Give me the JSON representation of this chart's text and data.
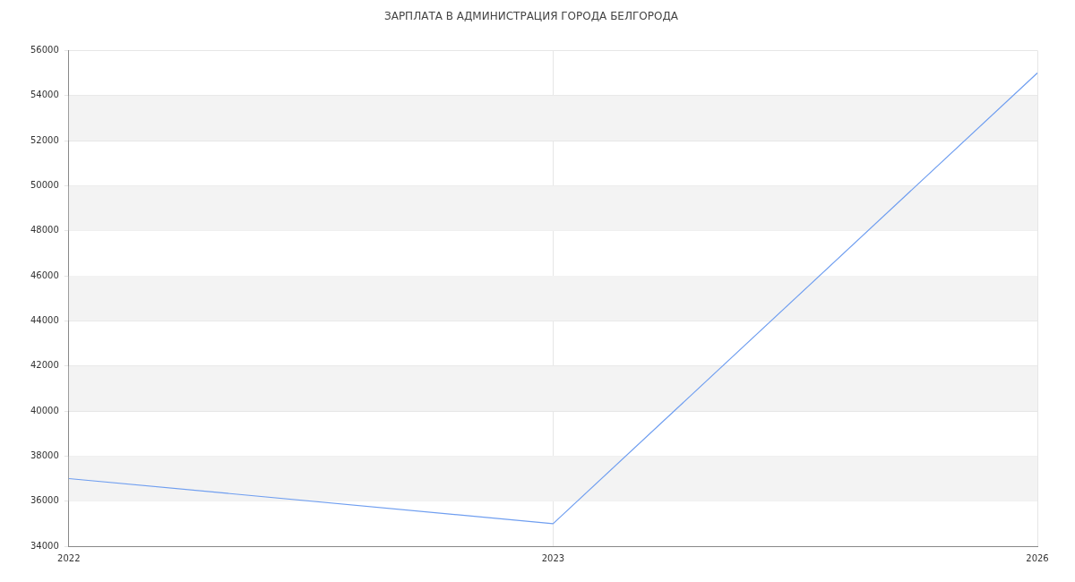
{
  "chart_data": {
    "type": "line",
    "title": "ЗАРПЛАТА В АДМИНИСТРАЦИЯ ГОРОДА БЕЛГОРОДА",
    "categories": [
      "2022",
      "2023",
      "2026"
    ],
    "series": [
      {
        "color": "#6f9ef0",
        "values": [
          37000,
          35000,
          55000
        ]
      }
    ],
    "ylim": [
      34000,
      56000
    ],
    "yticks": [
      34000,
      36000,
      38000,
      40000,
      42000,
      44000,
      46000,
      48000,
      50000,
      52000,
      54000,
      56000
    ],
    "bands": [
      {
        "axis": "y",
        "from": 36000,
        "to": 38000,
        "color": "#f3f3f3"
      },
      {
        "axis": "y",
        "from": 40000,
        "to": 42000,
        "color": "#f3f3f3"
      },
      {
        "axis": "y",
        "from": 44000,
        "to": 46000,
        "color": "#f3f3f3"
      },
      {
        "axis": "y",
        "from": 48000,
        "to": 50000,
        "color": "#f3f3f3"
      },
      {
        "axis": "y",
        "from": 52000,
        "to": 54000,
        "color": "#f3f3f3"
      }
    ],
    "grid": true,
    "legend": false,
    "marker": "none",
    "line_style": "solid"
  }
}
